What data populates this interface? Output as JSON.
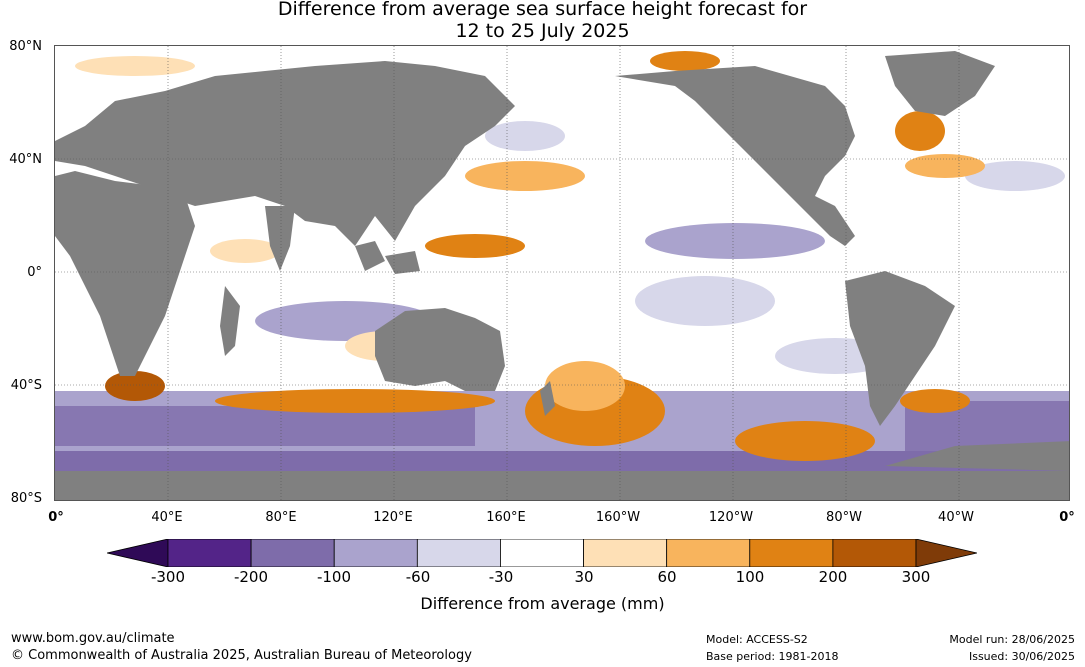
{
  "title": {
    "line1": "Difference from average sea surface height forecast for",
    "line2": "12 to 25 July 2025"
  },
  "map": {
    "lat_labels": [
      "80°N",
      "40°N",
      "0°",
      "40°S",
      "80°S"
    ],
    "lon_labels": [
      "0°",
      "40°E",
      "80°E",
      "120°E",
      "160°E",
      "160°W",
      "120°W",
      "80°W",
      "40°W",
      "0°"
    ],
    "colors": {
      "land": "#808080",
      "ocean_neutral": "#ffffff",
      "grid": "#555555"
    }
  },
  "colorbar": {
    "title": "Difference from average (mm)",
    "tick_labels": [
      "-300",
      "-200",
      "-100",
      "-60",
      "-30",
      "30",
      "60",
      "100",
      "200",
      "300"
    ],
    "colors": [
      "#2f0a57",
      "#532488",
      "#7e6caa",
      "#aaa3cd",
      "#d7d7ea",
      "#ffffff",
      "#fee0b6",
      "#f8b45d",
      "#e08214",
      "#b35806",
      "#7f3b08"
    ]
  },
  "footer": {
    "website": "www.bom.gov.au/climate",
    "copyright": "© Commonwealth of Australia 2025, Australian Bureau of Meteorology",
    "model": "Model: ACCESS-S2",
    "base_period": "Base period: 1981-2018",
    "model_run": "Model run: 28/06/2025",
    "issued": "Issued: 30/06/2025"
  }
}
